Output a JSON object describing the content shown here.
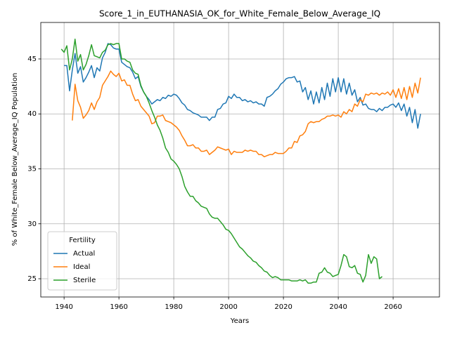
{
  "chart_data": {
    "type": "line",
    "title": "Score_1_in_EUTHANASIA_OK_for_White_Female_Below_Average_IQ",
    "xlabel": "Years",
    "ylabel": "% of White_Female Below_Average_IQ Population",
    "x": [
      1939,
      1940,
      1941,
      1942,
      1943,
      1944,
      1945,
      1946,
      1947,
      1948,
      1949,
      1950,
      1951,
      1952,
      1953,
      1954,
      1955,
      1956,
      1957,
      1958,
      1959,
      1960,
      1961,
      1962,
      1963,
      1964,
      1965,
      1966,
      1967,
      1968,
      1969,
      1970,
      1971,
      1972,
      1973,
      1974,
      1975,
      1976,
      1977,
      1978,
      1979,
      1980,
      1981,
      1982,
      1983,
      1984,
      1985,
      1986,
      1987,
      1988,
      1989,
      1990,
      1991,
      1992,
      1993,
      1994,
      1995,
      1996,
      1997,
      1998,
      1999,
      2000,
      2001,
      2002,
      2003,
      2004,
      2005,
      2006,
      2007,
      2008,
      2009,
      2010,
      2011,
      2012,
      2013,
      2014,
      2015,
      2016,
      2017,
      2018,
      2019,
      2020,
      2021,
      2022,
      2023,
      2024,
      2025,
      2026,
      2027,
      2028,
      2029,
      2030,
      2031,
      2032,
      2033,
      2034,
      2035,
      2036,
      2037,
      2038,
      2039,
      2040,
      2041,
      2042,
      2043,
      2044,
      2045,
      2046,
      2047,
      2048,
      2049,
      2050,
      2051,
      2052,
      2053,
      2054,
      2055,
      2056,
      2057,
      2058,
      2059,
      2060,
      2061,
      2062,
      2063,
      2064,
      2065,
      2066,
      2067,
      2068,
      2069,
      2070
    ],
    "series": [
      {
        "name": "Actual",
        "color": "#1f77b4",
        "values": [
          null,
          44.4,
          44.4,
          42.1,
          44.0,
          45.5,
          43.7,
          44.3,
          42.9,
          43.3,
          43.8,
          44.4,
          43.3,
          44.2,
          43.9,
          45.1,
          45.6,
          46.4,
          46.3,
          46.0,
          45.9,
          45.9,
          44.7,
          44.5,
          44.3,
          44.2,
          43.8,
          43.2,
          43.4,
          42.5,
          42.0,
          41.6,
          41.3,
          40.9,
          41.1,
          41.3,
          41.2,
          41.5,
          41.4,
          41.7,
          41.6,
          41.8,
          41.7,
          41.4,
          41.0,
          40.8,
          40.4,
          40.3,
          40.1,
          40.0,
          39.9,
          39.7,
          39.7,
          39.7,
          39.4,
          39.7,
          39.7,
          40.4,
          40.5,
          40.9,
          41.0,
          41.6,
          41.4,
          41.8,
          41.5,
          41.5,
          41.2,
          41.3,
          41.1,
          41.2,
          41.0,
          41.1,
          40.9,
          40.9,
          40.7,
          41.5,
          41.6,
          41.8,
          42.1,
          42.3,
          42.7,
          42.9,
          43.2,
          43.3,
          43.3,
          43.4,
          42.9,
          43.0,
          42.0,
          42.4,
          41.3,
          42.1,
          40.9,
          42.0,
          41.0,
          42.4,
          41.3,
          42.8,
          41.6,
          43.2,
          42.0,
          43.3,
          42.0,
          43.2,
          41.8,
          42.8,
          41.7,
          42.2,
          41.1,
          41.5,
          40.8,
          40.9,
          40.5,
          40.4,
          40.4,
          40.2,
          40.5,
          40.3,
          40.6,
          40.6,
          40.8,
          40.9,
          40.6,
          41.0,
          40.3,
          40.9,
          39.8,
          40.6,
          39.2,
          40.4,
          38.7,
          40.0
        ]
      },
      {
        "name": "Ideal",
        "color": "#ff7f0e",
        "values": [
          null,
          null,
          null,
          null,
          39.4,
          42.7,
          41.2,
          40.6,
          39.6,
          39.9,
          40.3,
          41.0,
          40.4,
          41.1,
          41.5,
          42.6,
          43.0,
          43.4,
          43.9,
          43.6,
          43.4,
          43.7,
          43.0,
          43.1,
          42.6,
          42.6,
          41.8,
          41.2,
          41.3,
          40.7,
          40.4,
          40.1,
          39.8,
          39.1,
          39.2,
          39.8,
          39.8,
          39.9,
          39.4,
          39.3,
          39.2,
          39.0,
          38.8,
          38.5,
          38.0,
          37.6,
          37.1,
          37.1,
          37.2,
          36.9,
          36.9,
          36.6,
          36.6,
          36.7,
          36.3,
          36.5,
          36.7,
          37.0,
          36.9,
          36.8,
          36.7,
          36.8,
          36.3,
          36.6,
          36.5,
          36.5,
          36.5,
          36.7,
          36.6,
          36.7,
          36.6,
          36.6,
          36.3,
          36.3,
          36.1,
          36.2,
          36.3,
          36.3,
          36.5,
          36.4,
          36.4,
          36.4,
          36.6,
          36.9,
          36.9,
          37.5,
          37.4,
          38.0,
          38.1,
          38.4,
          39.1,
          39.3,
          39.2,
          39.3,
          39.3,
          39.5,
          39.6,
          39.8,
          39.8,
          39.9,
          39.8,
          39.9,
          39.7,
          40.2,
          40.0,
          40.4,
          40.2,
          40.9,
          40.7,
          41.3,
          41.1,
          41.8,
          41.7,
          41.9,
          41.8,
          41.9,
          41.7,
          41.9,
          41.8,
          42.0,
          41.7,
          42.2,
          41.5,
          42.3,
          41.4,
          42.4,
          41.3,
          42.5,
          41.5,
          42.8,
          41.9,
          43.3
        ]
      },
      {
        "name": "Sterile",
        "color": "#2ca02c",
        "values": [
          45.9,
          45.6,
          46.2,
          44.0,
          45.0,
          46.8,
          44.8,
          45.4,
          44.0,
          44.5,
          45.3,
          46.3,
          45.3,
          45.2,
          45.1,
          45.6,
          45.8,
          46.3,
          46.4,
          46.3,
          46.4,
          46.4,
          45.0,
          45.0,
          44.8,
          44.7,
          44.0,
          43.7,
          43.6,
          42.6,
          42.0,
          41.6,
          41.0,
          40.3,
          39.7,
          39.0,
          38.5,
          37.8,
          36.9,
          36.5,
          35.9,
          35.7,
          35.4,
          35.0,
          34.3,
          33.4,
          32.9,
          32.5,
          32.5,
          32.1,
          31.9,
          31.6,
          31.5,
          31.4,
          30.9,
          30.6,
          30.5,
          30.5,
          30.2,
          29.9,
          29.5,
          29.4,
          29.1,
          28.7,
          28.3,
          27.9,
          27.7,
          27.4,
          27.1,
          26.9,
          26.6,
          26.5,
          26.2,
          26.0,
          25.7,
          25.6,
          25.3,
          25.1,
          25.2,
          25.1,
          24.9,
          24.9,
          24.9,
          24.9,
          24.8,
          24.8,
          24.8,
          24.9,
          24.8,
          24.9,
          24.6,
          24.6,
          24.7,
          24.7,
          25.5,
          25.6,
          26.0,
          25.6,
          25.5,
          25.2,
          25.3,
          25.4,
          26.2,
          27.2,
          27.0,
          26.1,
          26.0,
          26.2,
          25.5,
          25.4,
          24.7,
          25.3,
          27.2,
          26.4,
          27.0,
          26.8,
          25.0,
          25.2,
          null,
          null,
          null,
          null,
          null,
          null,
          null,
          null,
          null,
          null,
          null,
          null,
          null,
          null
        ]
      }
    ],
    "xlim": [
      1931.5,
      2076.9
    ],
    "ylim": [
      23.34,
      48.32
    ],
    "xticks": [
      1940,
      1960,
      1980,
      2000,
      2020,
      2040,
      2060
    ],
    "yticks": [
      25,
      30,
      35,
      40,
      45
    ],
    "grid": true,
    "legend": {
      "title": "Fertility",
      "position": "lower left"
    }
  }
}
